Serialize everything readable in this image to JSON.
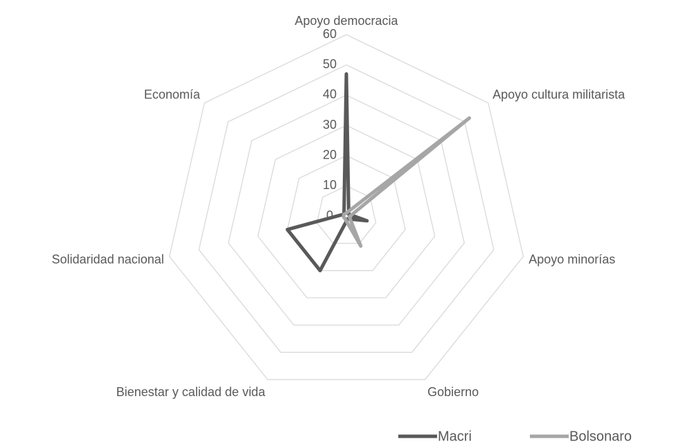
{
  "chart_data": {
    "type": "radar",
    "categories": [
      "Apoyo democracia",
      "Apoyo cultura militarista",
      "Apoyo minorías",
      "Gobierno",
      "Bienestar y calidad de vida",
      "Solidaridad nacional",
      "Economía"
    ],
    "series": [
      {
        "name": "Macri",
        "color": "#595959",
        "values": [
          47,
          1,
          7,
          1,
          20,
          20,
          1
        ]
      },
      {
        "name": "Bolsonaro",
        "color": "#a6a6a6",
        "values": [
          1,
          52,
          1,
          11,
          1,
          1,
          1
        ]
      }
    ],
    "rlim": [
      0,
      60
    ],
    "rticks": [
      0,
      10,
      20,
      30,
      40,
      50,
      60
    ],
    "grid": true,
    "legend": "bottom"
  }
}
